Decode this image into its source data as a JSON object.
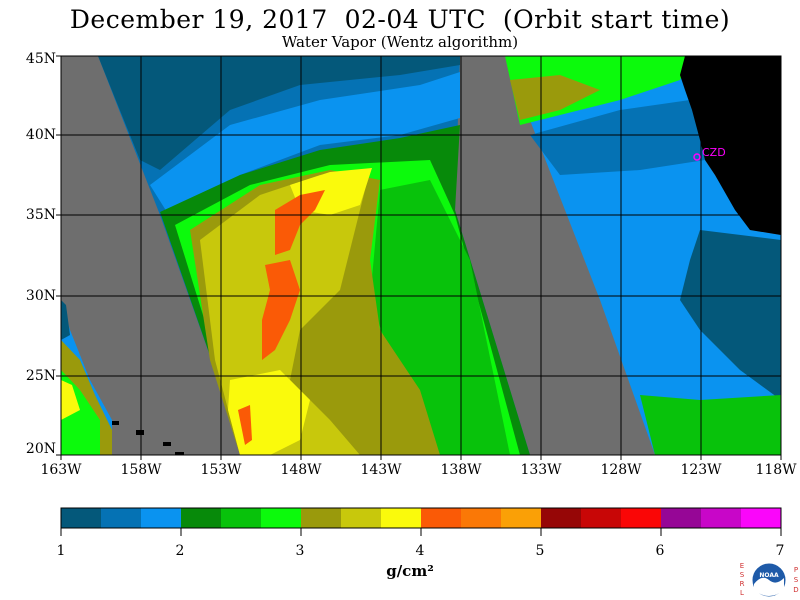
{
  "title": "December 19, 2017  02-04 UTC  (Orbit start time)",
  "subtitle": "Water Vapor (Wentz algorithm)",
  "map": {
    "lat_labels": [
      "45N",
      "40N",
      "35N",
      "30N",
      "25N",
      "20N"
    ],
    "lon_labels": [
      "163W",
      "158W",
      "153W",
      "148W",
      "143W",
      "138W",
      "133W",
      "128W",
      "123W",
      "118W"
    ],
    "station_label": "CZD",
    "colors": {
      "background_gray": "#6e6e6e",
      "land": "#000000",
      "grid": "#000000",
      "station": "#ff00ff"
    }
  },
  "colorbar": {
    "labels": [
      "1",
      "2",
      "3",
      "4",
      "5",
      "6",
      "7"
    ],
    "unit": "g/cm²",
    "colors": [
      "#04587a",
      "#0572b4",
      "#0a93f0",
      "#078a0a",
      "#08c20b",
      "#0cfa0c",
      "#9a9a0c",
      "#c8c80c",
      "#fafa0c",
      "#fa5a06",
      "#fa7806",
      "#faa006",
      "#960606",
      "#c80606",
      "#fa0606",
      "#960696",
      "#c806c8",
      "#fa06fa"
    ]
  },
  "logo": {
    "left_letters": "ESRL",
    "right_letters": "PSD",
    "center_text": "NOAA"
  }
}
